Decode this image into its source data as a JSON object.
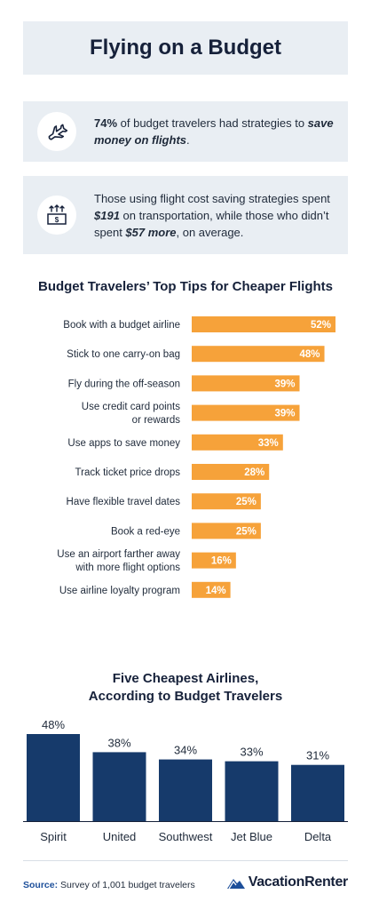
{
  "title": "Flying on a Budget",
  "stat1": {
    "icon": "airplane-icon",
    "bold_lead": "74%",
    "text_mid": " of budget travelers had strategies to ",
    "emphasis": "save money on flights",
    "text_end": "."
  },
  "stat2": {
    "icon": "money-up-arrows-icon",
    "text_a": "Those using flight cost saving strategies spent ",
    "value_a": "$191",
    "text_b": " on transportation, while those who didn’t spent ",
    "value_b": "$57 more",
    "text_c": ", on average."
  },
  "colors": {
    "bar_orange": "#f6a23a",
    "bar_navy": "#163a6b",
    "box_gray": "#e9eef3",
    "text_dark": "#16213a"
  },
  "chart_data": [
    {
      "type": "bar",
      "orientation": "horizontal",
      "title": "Budget Travelers’ Top Tips for Cheaper Flights",
      "categories": [
        [
          "Book with a budget airline"
        ],
        [
          "Stick to one carry-on bag"
        ],
        [
          "Fly during the off-season"
        ],
        [
          "Use credit card points",
          "or rewards"
        ],
        [
          "Use apps to save money"
        ],
        [
          "Track ticket price drops"
        ],
        [
          "Have flexible travel dates"
        ],
        [
          "Book a red-eye"
        ],
        [
          "Use an airport farther away",
          "with more flight options"
        ],
        [
          "Use airline loyalty program"
        ]
      ],
      "values": [
        52,
        48,
        39,
        39,
        33,
        28,
        25,
        25,
        16,
        14
      ],
      "value_suffix": "%",
      "xlim": [
        0,
        52
      ]
    },
    {
      "type": "bar",
      "orientation": "vertical",
      "title_lines": [
        "Five Cheapest Airlines,",
        "According to Budget Travelers"
      ],
      "categories": [
        "Spirit",
        "United",
        "Southwest",
        "Jet Blue",
        "Delta"
      ],
      "values": [
        48,
        38,
        34,
        33,
        31
      ],
      "value_suffix": "%",
      "ylim": [
        0,
        48
      ]
    }
  ],
  "footer": {
    "source_label": "Source:",
    "source_text": " Survey of 1,001 budget travelers",
    "logo_text": "VacationRenter",
    "logo_icon": "mountain-logo-icon"
  }
}
